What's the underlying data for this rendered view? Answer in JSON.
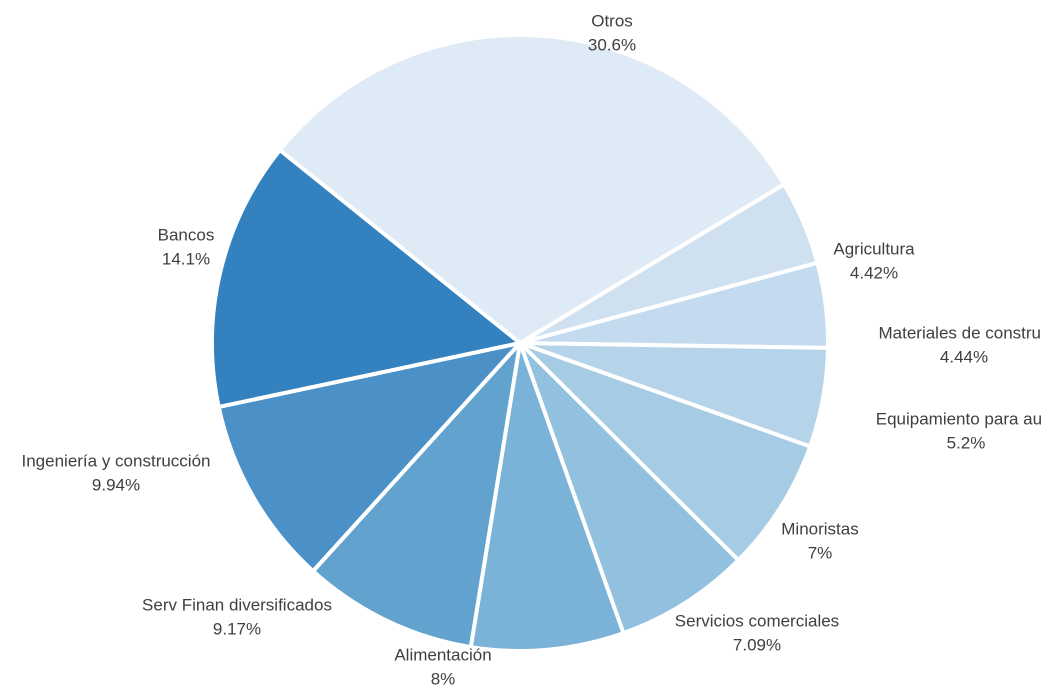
{
  "chart_data": {
    "type": "pie",
    "title": "",
    "unit": "%",
    "start_from": "top, clockwise",
    "slice_separator_color": "#ffffff",
    "label_color": "#404040",
    "slices": [
      {
        "label": "Agricultura",
        "value": 4.42,
        "value_label": "4.42%",
        "color": "#cfe0f1"
      },
      {
        "label": "Materiales de construc",
        "value": 4.44,
        "value_label": "4.44%",
        "color": "#c4daee"
      },
      {
        "label": "Equipamiento para auto",
        "value": 5.2,
        "value_label": "5.2%",
        "color": "#b5d3e9"
      },
      {
        "label": "Minoristas",
        "value": 7,
        "value_label": "7%",
        "color": "#a6cbe4"
      },
      {
        "label": "Servicios comerciales",
        "value": 7.09,
        "value_label": "7.09%",
        "color": "#92c0df"
      },
      {
        "label": "Alimentación",
        "value": 8,
        "value_label": "8%",
        "color": "#7ab2d8"
      },
      {
        "label": "Serv Finan diversificados",
        "value": 9.17,
        "value_label": "9.17%",
        "color": "#62a2cf"
      },
      {
        "label": "Ingeniería y construcción",
        "value": 9.94,
        "value_label": "9.94%",
        "color": "#4b91c7"
      },
      {
        "label": "Bancos",
        "value": 14.1,
        "value_label": "14.1%",
        "color": "#3381be"
      },
      {
        "label": "Otros",
        "value": 30.6,
        "value_label": "30.6%",
        "color": "#deeaf6"
      }
    ]
  }
}
